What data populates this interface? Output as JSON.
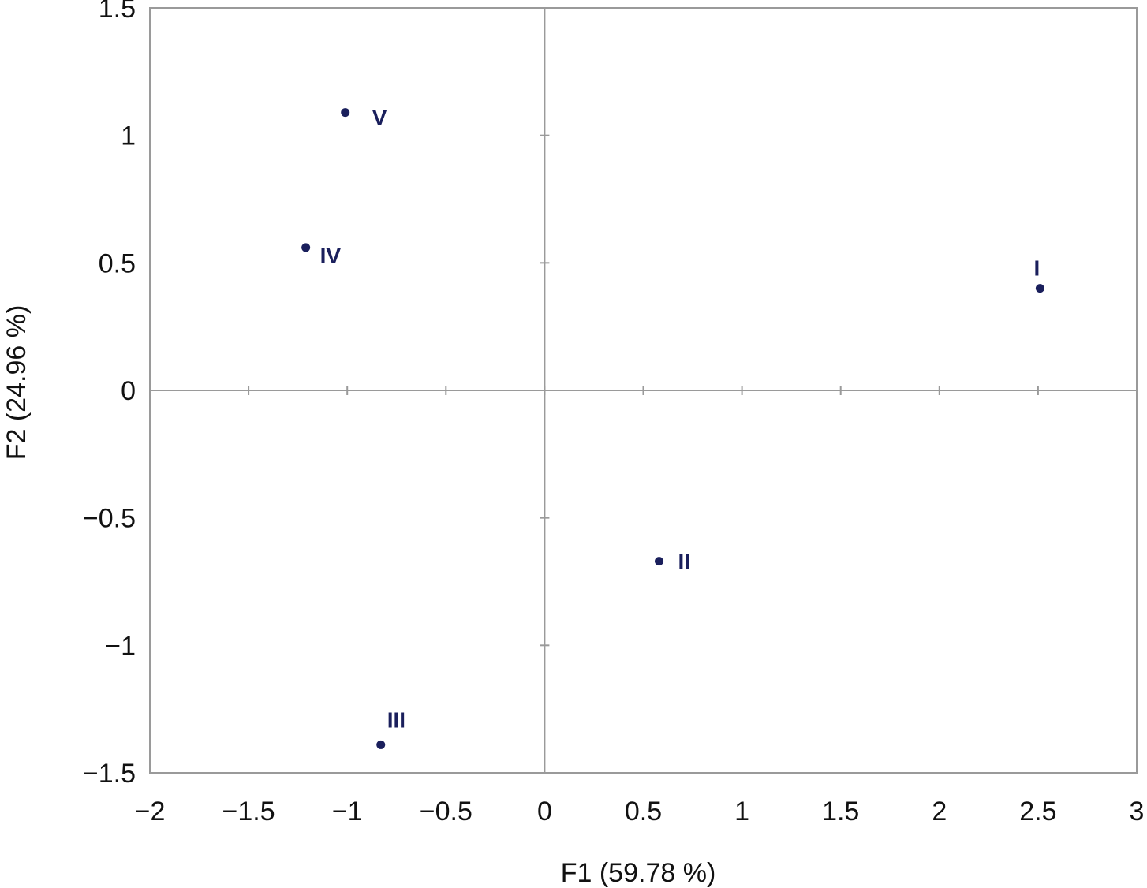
{
  "chart_data": {
    "type": "scatter",
    "title": "",
    "xlabel": "F1 (59.78 %)",
    "ylabel": "F2 (24.96 %)",
    "xlim": [
      -2,
      3
    ],
    "ylim": [
      -1.5,
      1.5
    ],
    "x_ticks": [
      -2,
      -1.5,
      -1,
      -0.5,
      0,
      0.5,
      1,
      1.5,
      2,
      2.5,
      3
    ],
    "x_tick_labels": [
      "−2",
      "−1.5",
      "−1",
      "−0.5",
      "0",
      "0.5",
      "1",
      "1.5",
      "2",
      "2.5",
      "3"
    ],
    "y_ticks": [
      -1.5,
      -1,
      -0.5,
      0,
      0.5,
      1,
      1.5
    ],
    "y_tick_labels": [
      "−1.5",
      "−1",
      "−0.5",
      "0",
      "0.5",
      "1",
      "1.5"
    ],
    "grid": false,
    "point_color": "#1a1f5c",
    "points": [
      {
        "label": "I",
        "x": 2.51,
        "y": 0.4
      },
      {
        "label": "II",
        "x": 0.58,
        "y": -0.67
      },
      {
        "label": "III",
        "x": -0.83,
        "y": -1.39
      },
      {
        "label": "IV",
        "x": -1.21,
        "y": 0.56
      },
      {
        "label": "V",
        "x": -1.01,
        "y": 1.09
      }
    ]
  }
}
